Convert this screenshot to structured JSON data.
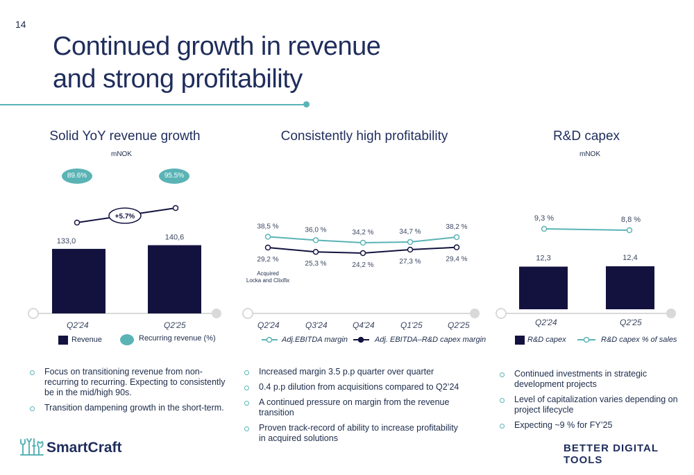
{
  "page_number": "14",
  "title": {
    "line1": "Continued growth in revenue",
    "line2": "and strong profitability"
  },
  "colors": {
    "navy": "#13123f",
    "teal": "#5ab3b5",
    "grey": "#d9d9d9",
    "text": "#1c2b4a"
  },
  "chart_data": [
    {
      "type": "bar",
      "title": "Solid YoY revenue growth",
      "unit": "mNOK",
      "categories": [
        "Q2'24",
        "Q2'25"
      ],
      "series": [
        {
          "name": "Revenue",
          "values": [
            133.0,
            140.6
          ],
          "labels": [
            "133,0",
            "140,6"
          ]
        },
        {
          "name": "Recurring revenue (%)",
          "values": [
            89.6,
            95.5
          ],
          "labels": [
            "89.6%",
            "95.5%"
          ]
        }
      ],
      "growth_label": "+5.7%"
    },
    {
      "type": "line",
      "title": "Consistently high profitability",
      "categories": [
        "Q2'24",
        "Q3'24",
        "Q4'24",
        "Q1'25",
        "Q2'25"
      ],
      "series": [
        {
          "name": "Adj.EBITDA margin",
          "values": [
            38.5,
            36.0,
            34.2,
            34.7,
            38.2
          ],
          "labels": [
            "38,5 %",
            "36,0 %",
            "34,2 %",
            "34,7 %",
            "38,2 %"
          ]
        },
        {
          "name": "Adj. EBITDA–R&D capex margin",
          "values": [
            29.2,
            25.3,
            24.2,
            27.3,
            29.4
          ],
          "labels": [
            "29,2 %",
            "25,3 %",
            "24,2 %",
            "27,3 %",
            "29,4 %"
          ]
        }
      ],
      "annotation": {
        "line1": "Acquired",
        "line2": "Locka and Clixifix"
      }
    },
    {
      "type": "bar",
      "title": "R&D capex",
      "unit": "mNOK",
      "categories": [
        "Q2'24",
        "Q2'25"
      ],
      "series": [
        {
          "name": "R&D capex",
          "values": [
            12.3,
            12.4
          ],
          "labels": [
            "12,3",
            "12,4"
          ]
        },
        {
          "name": "R&D capex % of sales",
          "values": [
            9.3,
            8.8
          ],
          "labels": [
            "9,3 %",
            "8,8 %"
          ]
        }
      ]
    }
  ],
  "bullets": {
    "col1": [
      "Focus on transitioning revenue from non-recurring to recurring. Expecting to consistently be in the mid/high 90s.",
      "Transition dampening growth in the short-term."
    ],
    "col2": [
      "Increased margin 3.5 p.p quarter over quarter",
      "0.4 p.p dilution from acquisitions compared to Q2’24",
      "A continued pressure on margin from the revenue transition",
      "Proven track-record of ability to increase profitability in acquired solutions"
    ],
    "col3": [
      "Continued investments in strategic development projects",
      "Level of capitalization varies depending on project lifecycle",
      "Expecting ~9 % for FY’25"
    ]
  },
  "footer": {
    "logo": "SmartCraft",
    "tagline": "BETTER DIGITAL TOOLS",
    "logo_icon": "tools-logo-icon"
  }
}
